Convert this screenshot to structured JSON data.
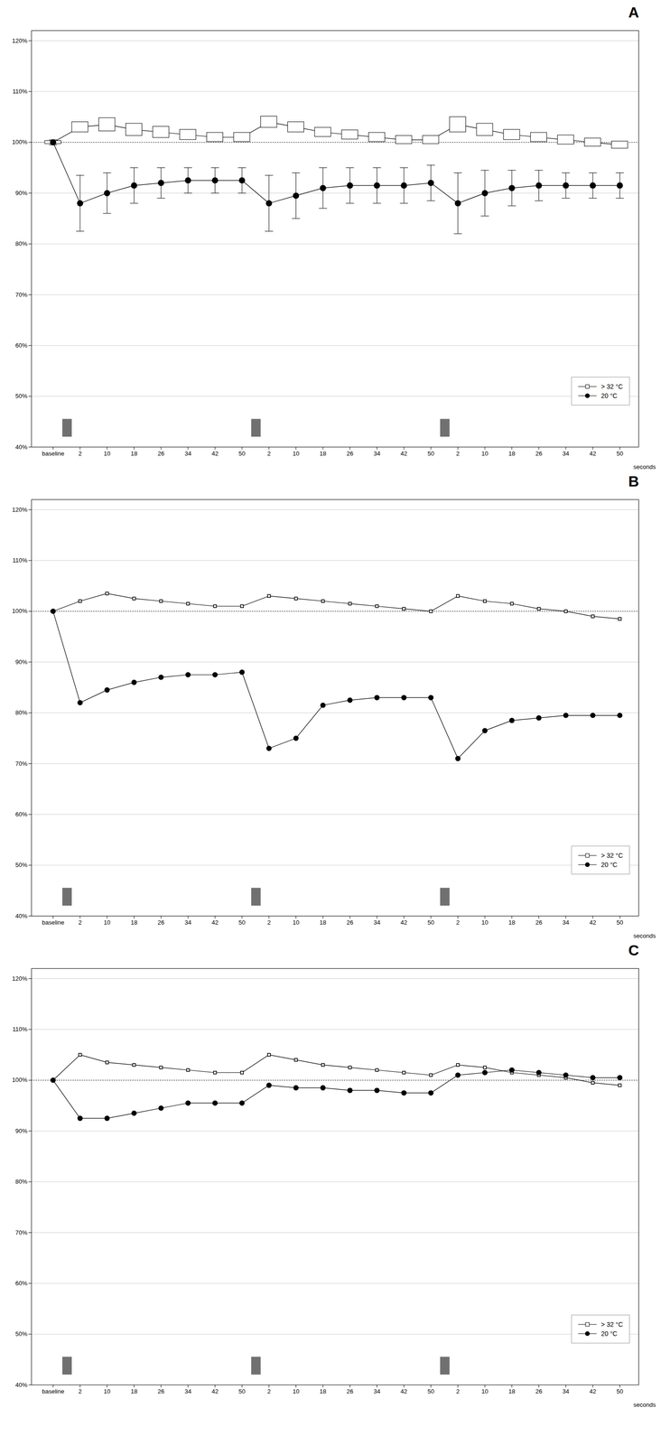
{
  "chart_data": [
    {
      "type": "line",
      "title": "A",
      "x_label": "seconds",
      "categories": [
        "baseline",
        "2",
        "10",
        "18",
        "26",
        "34",
        "42",
        "50",
        "2",
        "10",
        "18",
        "26",
        "34",
        "42",
        "50",
        "2",
        "10",
        "18",
        "26",
        "34",
        "42",
        "50"
      ],
      "series": [
        {
          "name": "> 32 °C",
          "marker": "square",
          "values": [
            100,
            103.0,
            103.5,
            102.5,
            102.0,
            101.5,
            101.0,
            101.0,
            104.0,
            103.0,
            102.0,
            101.5,
            101.0,
            100.5,
            100.5,
            103.5,
            102.5,
            101.5,
            101.0,
            100.5,
            100.0,
            99.5
          ],
          "error_upper": [
            0.3,
            1.0,
            1.3,
            1.2,
            1.1,
            1.0,
            0.9,
            0.9,
            1.1,
            1.0,
            0.9,
            0.9,
            0.9,
            0.8,
            0.8,
            1.5,
            1.2,
            1.0,
            0.9,
            0.9,
            0.8,
            0.7
          ],
          "error_lower": [
            0.3,
            1.0,
            1.3,
            1.2,
            1.1,
            1.0,
            0.9,
            0.9,
            1.1,
            1.0,
            0.9,
            0.9,
            0.9,
            0.8,
            0.8,
            1.5,
            1.2,
            1.0,
            0.9,
            0.9,
            0.8,
            0.7
          ]
        },
        {
          "name": "20 °C",
          "marker": "circle",
          "values": [
            100,
            88.0,
            90.0,
            91.5,
            92.0,
            92.5,
            92.5,
            92.5,
            88.0,
            89.5,
            91.0,
            91.5,
            91.5,
            91.5,
            92.0,
            88.0,
            90.0,
            91.0,
            91.5,
            91.5,
            91.5,
            91.5
          ],
          "error_upper": [
            0.5,
            5.5,
            4.0,
            3.5,
            3.0,
            2.5,
            2.5,
            2.5,
            5.5,
            4.5,
            4.0,
            3.5,
            3.5,
            3.5,
            3.5,
            6.0,
            4.5,
            3.5,
            3.0,
            2.5,
            2.5,
            2.5
          ],
          "error_lower": [
            0.5,
            5.5,
            4.0,
            3.5,
            3.0,
            2.5,
            2.5,
            2.5,
            5.5,
            4.5,
            4.0,
            3.5,
            3.5,
            3.5,
            3.5,
            6.0,
            4.5,
            3.5,
            3.0,
            2.5,
            2.5,
            2.5
          ]
        }
      ],
      "ylim": [
        40,
        122
      ],
      "yticks": [
        {
          "value": 40,
          "label": "40%"
        },
        {
          "value": 50,
          "label": "50%"
        },
        {
          "value": 60,
          "label": "60%"
        },
        {
          "value": 70,
          "label": "70%"
        },
        {
          "value": 80,
          "label": "80%"
        },
        {
          "value": 90,
          "label": "90%"
        },
        {
          "value": 100,
          "label": "100%"
        },
        {
          "value": 110,
          "label": "110%"
        },
        {
          "value": 120,
          "label": "120%"
        }
      ],
      "grid": true,
      "legend": "lower right",
      "reference_line": {
        "y": 100,
        "line_style": "dotted"
      },
      "effort_bars": {
        "y_range": [
          42,
          45.5
        ],
        "color": "#707070"
      }
    },
    {
      "type": "line",
      "title": "B",
      "x_label": "seconds",
      "categories": [
        "baseline",
        "2",
        "10",
        "18",
        "26",
        "34",
        "42",
        "50",
        "2",
        "10",
        "18",
        "26",
        "34",
        "42",
        "50",
        "2",
        "10",
        "18",
        "26",
        "34",
        "42",
        "50"
      ],
      "series": [
        {
          "name": "> 32 °C",
          "marker": "square",
          "values": [
            100,
            102.0,
            103.5,
            102.5,
            102.0,
            101.5,
            101.0,
            101.0,
            103.0,
            102.5,
            102.0,
            101.5,
            101.0,
            100.5,
            100.0,
            103.0,
            102.0,
            101.5,
            100.5,
            100.0,
            99.0,
            98.5
          ]
        },
        {
          "name": "20 °C",
          "marker": "circle",
          "values": [
            100,
            82.0,
            84.5,
            86.0,
            87.0,
            87.5,
            87.5,
            88.0,
            73.0,
            75.0,
            81.5,
            82.5,
            83.0,
            83.0,
            83.0,
            71.0,
            76.5,
            78.5,
            79.0,
            79.5,
            79.5,
            79.5
          ]
        }
      ],
      "ylim": [
        40,
        122
      ],
      "yticks": [
        {
          "value": 40,
          "label": "40%"
        },
        {
          "value": 50,
          "label": "50%"
        },
        {
          "value": 60,
          "label": "60%"
        },
        {
          "value": 70,
          "label": "70%"
        },
        {
          "value": 80,
          "label": "80%"
        },
        {
          "value": 90,
          "label": "90%"
        },
        {
          "value": 100,
          "label": "100%"
        },
        {
          "value": 110,
          "label": "110%"
        },
        {
          "value": 120,
          "label": "120%"
        }
      ],
      "grid": true,
      "legend": "lower right",
      "reference_line": {
        "y": 100,
        "line_style": "dotted"
      },
      "effort_bars": {
        "y_range": [
          42,
          45.5
        ],
        "color": "#707070"
      }
    },
    {
      "type": "line",
      "title": "C",
      "x_label": "seconds",
      "categories": [
        "baseline",
        "2",
        "10",
        "18",
        "26",
        "34",
        "42",
        "50",
        "2",
        "10",
        "18",
        "26",
        "34",
        "42",
        "50",
        "2",
        "10",
        "18",
        "26",
        "34",
        "42",
        "50"
      ],
      "series": [
        {
          "name": "> 32 °C",
          "marker": "square",
          "values": [
            100,
            105.0,
            103.5,
            103.0,
            102.5,
            102.0,
            101.5,
            101.5,
            105.0,
            104.0,
            103.0,
            102.5,
            102.0,
            101.5,
            101.0,
            103.0,
            102.5,
            101.5,
            101.0,
            100.5,
            99.5,
            99.0
          ]
        },
        {
          "name": "20 °C",
          "marker": "circle",
          "values": [
            100,
            92.5,
            92.5,
            93.5,
            94.5,
            95.5,
            95.5,
            95.5,
            99.0,
            98.5,
            98.5,
            98.0,
            98.0,
            97.5,
            97.5,
            101.0,
            101.5,
            102.0,
            101.5,
            101.0,
            100.5,
            100.5
          ]
        }
      ],
      "ylim": [
        40,
        122
      ],
      "yticks": [
        {
          "value": 40,
          "label": "40%"
        },
        {
          "value": 50,
          "label": "50%"
        },
        {
          "value": 60,
          "label": "60%"
        },
        {
          "value": 70,
          "label": "70%"
        },
        {
          "value": 80,
          "label": "80%"
        },
        {
          "value": 90,
          "label": "90%"
        },
        {
          "value": 100,
          "label": "100%"
        },
        {
          "value": 110,
          "label": "110%"
        },
        {
          "value": 120,
          "label": "120%"
        }
      ],
      "grid": true,
      "legend": "lower right",
      "reference_line": {
        "y": 100,
        "line_style": "dotted"
      },
      "effort_bars": {
        "y_range": [
          42,
          45.5
        ],
        "color": "#707070"
      }
    }
  ]
}
